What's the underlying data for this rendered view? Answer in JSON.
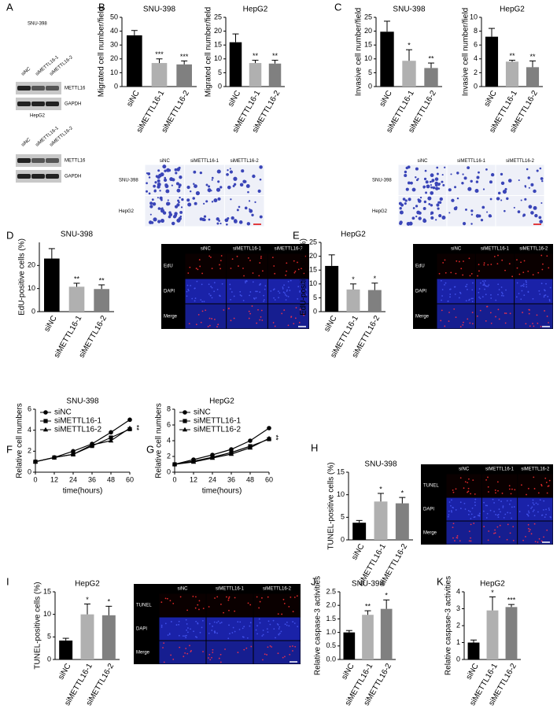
{
  "panels": [
    "A",
    "B",
    "C",
    "D",
    "E",
    "F",
    "G",
    "H",
    "I",
    "J",
    "K"
  ],
  "blots": [
    {
      "title": "SNU-398",
      "lanes": [
        "siNC",
        "siMETTL16-1",
        "siMETTL16-2"
      ],
      "bands": [
        "METTL16",
        "GAPDH"
      ]
    },
    {
      "title": "HepG2",
      "lanes": [
        "siNC",
        "siMETTL16-1",
        "siMETTL16-2"
      ],
      "bands": [
        "METTL16",
        "GAPDH"
      ]
    }
  ],
  "images": [
    {
      "columns": [
        "siNC",
        "siMETTL16-1",
        "siMETTL16-2"
      ],
      "rows": [
        "SNU-398",
        "HepG2"
      ]
    },
    {
      "columns": [
        "siNC",
        "siMETTL16-1",
        "siMETTL16-2"
      ],
      "rows": [
        "SNU-398",
        "HepG2"
      ]
    },
    {
      "columns": [
        "siNC",
        "siMETTL16-1",
        "siMETTL16-2"
      ],
      "rows": [
        "EdU",
        "DAPI",
        "Merge"
      ]
    },
    {
      "columns": [
        "siNC",
        "siMETTL16-1",
        "siMETTL16-2"
      ],
      "rows": [
        "EdU",
        "DAPI",
        "Merge"
      ]
    },
    {
      "columns": [
        "siNC",
        "siMETTL16-1",
        "siMETTL16-2"
      ],
      "rows": [
        "TUNEL",
        "DAPI",
        "Merge"
      ]
    },
    {
      "columns": [
        "siNC",
        "siMETTL16-1",
        "siMETTL16-2"
      ],
      "rows": [
        "TUNEL",
        "DAPI",
        "Merge"
      ]
    }
  ],
  "chart_data": [
    {
      "type": "bar",
      "title": "SNU-398",
      "ylabel": "Migrated cell number/field",
      "categories": [
        "siNC",
        "siMETTL16-1",
        "siMETTL16-2"
      ],
      "values": [
        37,
        17,
        16
      ],
      "errors": [
        3.5,
        3,
        2.5
      ],
      "significance": [
        null,
        "***",
        "***"
      ],
      "colors": [
        "#000000",
        "#b0b0b0",
        "#808080"
      ],
      "ylim": [
        0,
        50
      ],
      "yticks": [
        0,
        10,
        20,
        30,
        40,
        50
      ]
    },
    {
      "type": "bar",
      "title": "HepG2",
      "ylabel": "Migrated cell number/field",
      "categories": [
        "siNC",
        "siMETTL16-1",
        "siMETTL16-2"
      ],
      "values": [
        16,
        8.5,
        8.3
      ],
      "errors": [
        3,
        1,
        1.2
      ],
      "significance": [
        null,
        "**",
        "**"
      ],
      "colors": [
        "#000000",
        "#b0b0b0",
        "#808080"
      ],
      "ylim": [
        0,
        25
      ],
      "yticks": [
        0,
        5,
        10,
        15,
        20,
        25
      ]
    },
    {
      "type": "bar",
      "title": "SNU-398",
      "ylabel": "Invasive cell number/field",
      "categories": [
        "siNC",
        "siMETTL16-1",
        "siMETTL16-2"
      ],
      "values": [
        19.8,
        9.3,
        6.7
      ],
      "errors": [
        3.8,
        4,
        1.8
      ],
      "significance": [
        null,
        "*",
        "**"
      ],
      "colors": [
        "#000000",
        "#b0b0b0",
        "#808080"
      ],
      "ylim": [
        0,
        25
      ],
      "yticks": [
        0,
        5,
        10,
        15,
        20,
        25
      ]
    },
    {
      "type": "bar",
      "title": "HepG2",
      "ylabel": "Invasive cell number/field",
      "categories": [
        "siNC",
        "siMETTL16-1",
        "siMETTL16-2"
      ],
      "values": [
        7.2,
        3.6,
        2.8
      ],
      "errors": [
        1.2,
        0.2,
        0.9
      ],
      "significance": [
        null,
        "**",
        "**"
      ],
      "colors": [
        "#000000",
        "#b0b0b0",
        "#808080"
      ],
      "ylim": [
        0,
        10
      ],
      "yticks": [
        0,
        2,
        4,
        6,
        8,
        10
      ]
    },
    {
      "type": "bar",
      "title": "SNU-398",
      "ylabel": "EdU-positive cells (%)",
      "categories": [
        "siNC",
        "siMETTL16-1",
        "siMETTL16-2"
      ],
      "values": [
        23,
        10.8,
        9.8
      ],
      "errors": [
        4.3,
        1.5,
        1.8
      ],
      "significance": [
        null,
        "**",
        "**"
      ],
      "colors": [
        "#000000",
        "#b0b0b0",
        "#808080"
      ],
      "ylim": [
        0,
        30
      ],
      "yticks": [
        0,
        10,
        20
      ]
    },
    {
      "type": "bar",
      "title": "HepG2",
      "ylabel": "EdU-positive cells (%)",
      "categories": [
        "siNC",
        "siMETTL16-1",
        "siMETTL16-2"
      ],
      "values": [
        16.5,
        8,
        7.8
      ],
      "errors": [
        4,
        2,
        2.5
      ],
      "significance": [
        null,
        "*",
        "*"
      ],
      "colors": [
        "#000000",
        "#b0b0b0",
        "#808080"
      ],
      "ylim": [
        0,
        25
      ],
      "yticks": [
        0,
        5,
        10,
        15,
        20,
        25
      ]
    },
    {
      "type": "line",
      "title": "SNU-398",
      "xlabel": "time(hours)",
      "ylabel": "Relative cell numbers",
      "x": [
        0,
        12,
        24,
        36,
        48,
        60
      ],
      "xlim": [
        0,
        60
      ],
      "xticks": [
        0,
        12,
        24,
        36,
        48,
        60
      ],
      "ylim": [
        0,
        6
      ],
      "yticks": [
        0,
        2,
        4,
        6
      ],
      "annotations": [
        "**"
      ],
      "series": [
        {
          "name": "siNC",
          "color": "#000000",
          "values": [
            1,
            1.4,
            2.0,
            2.7,
            3.8,
            5.0
          ]
        },
        {
          "name": "siMETTL16-1",
          "color": "#000000",
          "values": [
            1,
            1.4,
            1.7,
            2.5,
            3.3,
            4.1
          ]
        },
        {
          "name": "siMETTL16-2",
          "color": "#000000",
          "values": [
            1,
            1.4,
            1.7,
            2.6,
            3.0,
            4.2
          ]
        }
      ]
    },
    {
      "type": "line",
      "title": "HepG2",
      "xlabel": "time(hours)",
      "ylabel": "Relative cell numbers",
      "x": [
        0,
        12,
        24,
        36,
        48,
        60
      ],
      "xlim": [
        0,
        60
      ],
      "xticks": [
        0,
        12,
        24,
        36,
        48,
        60
      ],
      "ylim": [
        0,
        8
      ],
      "yticks": [
        0,
        2,
        4,
        6,
        8
      ],
      "annotations": [
        "**"
      ],
      "series": [
        {
          "name": "siNC",
          "color": "#000000",
          "values": [
            1,
            1.6,
            2.2,
            2.9,
            4.0,
            5.6
          ]
        },
        {
          "name": "siMETTL16-1",
          "color": "#000000",
          "values": [
            1,
            1.4,
            1.9,
            2.5,
            3.3,
            4.2
          ]
        },
        {
          "name": "siMETTL16-2",
          "color": "#000000",
          "values": [
            1,
            1.3,
            1.8,
            2.3,
            3.1,
            4.3
          ]
        }
      ]
    },
    {
      "type": "bar",
      "title": "SNU-398",
      "ylabel": "TUNEL-positive cells (%)",
      "categories": [
        "siNC",
        "siMETTL16-1",
        "siMETTL16-2"
      ],
      "values": [
        3.8,
        8.5,
        8.1
      ],
      "errors": [
        0.5,
        1.8,
        1.3
      ],
      "significance": [
        null,
        "*",
        "*"
      ],
      "colors": [
        "#000000",
        "#b0b0b0",
        "#808080"
      ],
      "ylim": [
        0,
        15
      ],
      "yticks": [
        0,
        5,
        10,
        15
      ]
    },
    {
      "type": "bar",
      "title": "HepG2",
      "ylabel": "TUNEL-positive cells (%)",
      "categories": [
        "siNC",
        "siMETTL16-1",
        "siMETTL16-2"
      ],
      "values": [
        4.2,
        10,
        9.8
      ],
      "errors": [
        0.5,
        2.3,
        2
      ],
      "significance": [
        null,
        "*",
        "*"
      ],
      "colors": [
        "#000000",
        "#b0b0b0",
        "#808080"
      ],
      "ylim": [
        0,
        15
      ],
      "yticks": [
        0,
        5,
        10,
        15
      ]
    },
    {
      "type": "bar",
      "title": "SNU-398",
      "ylabel": "Relative caspase-3 activities",
      "categories": [
        "siNC",
        "siMETTL16-1",
        "siMETTL16-2"
      ],
      "values": [
        1,
        1.65,
        1.87
      ],
      "errors": [
        0.07,
        0.15,
        0.33
      ],
      "significance": [
        null,
        "**",
        "*"
      ],
      "colors": [
        "#000000",
        "#b0b0b0",
        "#808080"
      ],
      "ylim": [
        0,
        2.5
      ],
      "yticks": [
        {
          "value": 0,
          "label": "0.0"
        },
        0.5,
        {
          "value": 1,
          "label": "1.0"
        },
        1.5,
        {
          "value": 2,
          "label": "2.0"
        },
        2.5
      ]
    },
    {
      "type": "bar",
      "title": "HepG2",
      "ylabel": "Relative caspase-3 activities",
      "categories": [
        "siNC",
        "siMETTL16-1",
        "siMETTL16-2"
      ],
      "values": [
        1,
        2.9,
        3.1
      ],
      "errors": [
        0.15,
        0.8,
        0.15
      ],
      "significance": [
        null,
        "*",
        "***"
      ],
      "colors": [
        "#000000",
        "#b0b0b0",
        "#808080"
      ],
      "ylim": [
        0,
        4
      ],
      "yticks": [
        0,
        1,
        2,
        3,
        4
      ]
    }
  ]
}
